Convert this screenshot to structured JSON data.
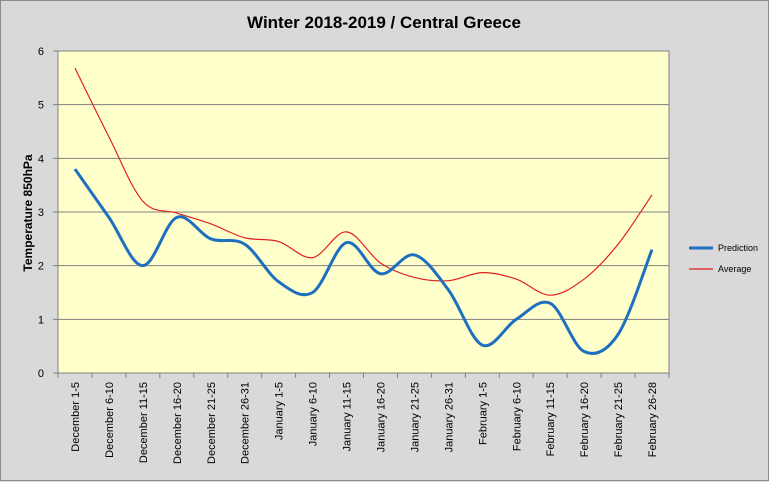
{
  "chart_data": {
    "type": "line",
    "title": "Winter 2018-2019 / Central Greece",
    "xlabel": "",
    "ylabel": "Temperature 850hPa",
    "ylim": [
      0,
      6
    ],
    "yticks": [
      0,
      1,
      2,
      3,
      4,
      5,
      6
    ],
    "grid": true,
    "legend_position": "right",
    "plot_background": "#ffffcc",
    "categories": [
      "December 1-5",
      "December 6-10",
      "December 11-15",
      "December 16-20",
      "December 21-25",
      "December 26-31",
      "January 1-5",
      "January 6-10",
      "January 11-15",
      "January 16-20",
      "January 21-25",
      "January 26-31",
      "February 1-5",
      "February 6-10",
      "February 11-15",
      "February 16-20",
      "February 21-25",
      "February 26-28"
    ],
    "series": [
      {
        "name": "Prediction",
        "color": "#1f6fbf",
        "values": [
          3.8,
          2.9,
          2.0,
          2.9,
          2.5,
          2.4,
          1.7,
          1.5,
          2.43,
          1.85,
          2.2,
          1.55,
          0.52,
          1.0,
          1.3,
          0.4,
          0.72,
          2.3
        ]
      },
      {
        "name": "Average",
        "color": "#e02020",
        "values": [
          5.68,
          4.4,
          3.2,
          2.98,
          2.78,
          2.52,
          2.45,
          2.15,
          2.63,
          2.05,
          1.78,
          1.72,
          1.87,
          1.75,
          1.45,
          1.75,
          2.4,
          3.32
        ]
      }
    ]
  }
}
